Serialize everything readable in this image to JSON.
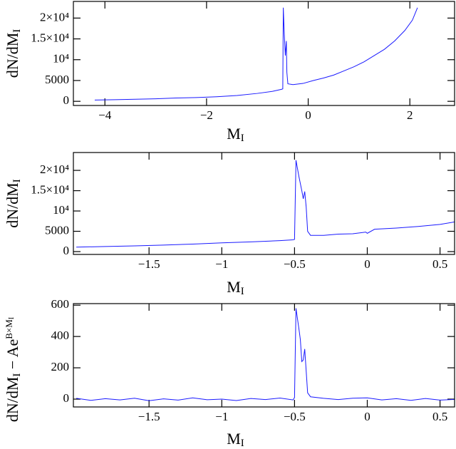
{
  "chart_data": [
    {
      "type": "line",
      "color": "#1a1aff",
      "xlabel": [
        {
          "text": "M"
        },
        {
          "text": "I",
          "style": "sub"
        }
      ],
      "ylabel": [
        {
          "text": "dN/dM"
        },
        {
          "text": "I",
          "style": "sub"
        }
      ],
      "xlim": [
        -4.62,
        2.88
      ],
      "ylim": [
        -1000,
        24000
      ],
      "xticks": [
        {
          "value": -4,
          "label": "−4"
        },
        {
          "value": -2,
          "label": "−2"
        },
        0,
        2
      ],
      "yticks": [
        0,
        5000,
        {
          "value": 10000,
          "label": "10⁴"
        },
        {
          "value": 15000,
          "label": "1.5×10⁴"
        },
        {
          "value": 20000,
          "label": "2×10⁴"
        }
      ],
      "x": [
        -4.2,
        -3.8,
        -3.4,
        -3.0,
        -2.6,
        -2.2,
        -1.8,
        -1.4,
        -1.0,
        -0.7,
        -0.52,
        -0.5,
        -0.49,
        -0.47,
        -0.45,
        -0.43,
        -0.42,
        -0.4,
        -0.3,
        -0.1,
        0.1,
        0.3,
        0.5,
        0.7,
        0.9,
        1.1,
        1.3,
        1.5,
        1.7,
        1.9,
        2.05,
        2.15
      ],
      "values": [
        300,
        400,
        500,
        600,
        800,
        900,
        1100,
        1400,
        1900,
        2400,
        2900,
        3000,
        22500,
        16000,
        11000,
        14500,
        7000,
        4200,
        4000,
        4300,
        5000,
        5600,
        6300,
        7300,
        8300,
        9500,
        11000,
        12500,
        14500,
        17000,
        19500,
        22500
      ]
    },
    {
      "type": "line",
      "color": "#1a1aff",
      "xlabel": [
        {
          "text": "M"
        },
        {
          "text": "I",
          "style": "sub"
        }
      ],
      "ylabel": [
        {
          "text": "dN/dM"
        },
        {
          "text": "I",
          "style": "sub"
        }
      ],
      "xlim": [
        -2.02,
        0.6
      ],
      "ylim": [
        -700,
        24400
      ],
      "xticks": [
        {
          "value": -1.5,
          "label": "−1.5"
        },
        {
          "value": -1,
          "label": "−1"
        },
        {
          "value": -0.5,
          "label": "−0.5"
        },
        0,
        0.5
      ],
      "yticks": [
        0,
        5000,
        {
          "value": 10000,
          "label": "10⁴"
        },
        {
          "value": 15000,
          "label": "1.5×10⁴"
        },
        {
          "value": 20000,
          "label": "2×10⁴"
        }
      ],
      "x": [
        -2.0,
        -1.8,
        -1.6,
        -1.4,
        -1.2,
        -1.0,
        -0.8,
        -0.6,
        -0.51,
        -0.5,
        -0.49,
        -0.47,
        -0.45,
        -0.44,
        -0.43,
        -0.42,
        -0.41,
        -0.39,
        -0.3,
        -0.2,
        -0.1,
        -0.01,
        0.0,
        0.05,
        0.2,
        0.35,
        0.5,
        0.6
      ],
      "values": [
        1100,
        1250,
        1400,
        1600,
        1850,
        2150,
        2400,
        2700,
        2900,
        3000,
        22500,
        18500,
        15000,
        13000,
        14800,
        11000,
        5000,
        4000,
        4000,
        4300,
        4400,
        4800,
        4500,
        5500,
        5800,
        6200,
        6700,
        7300
      ]
    },
    {
      "type": "line",
      "color": "#1a1aff",
      "xlabel": [
        {
          "text": "M"
        },
        {
          "text": "I",
          "style": "sub"
        }
      ],
      "ylabel": [
        {
          "text": "dN/dM"
        },
        {
          "text": "I",
          "style": "sub"
        },
        {
          "text": " − Ae"
        },
        {
          "text": "B×M",
          "style": "sup"
        },
        {
          "text": "I",
          "style": "supsub"
        }
      ],
      "xlim": [
        -2.02,
        0.6
      ],
      "ylim": [
        -50,
        610
      ],
      "xticks": [
        {
          "value": -1.5,
          "label": "−1.5"
        },
        {
          "value": -1,
          "label": "−1"
        },
        {
          "value": -0.5,
          "label": "−0.5"
        },
        0,
        0.5
      ],
      "yticks": [
        0,
        200,
        400,
        600
      ],
      "x": [
        -2.0,
        -1.9,
        -1.8,
        -1.7,
        -1.6,
        -1.5,
        -1.4,
        -1.3,
        -1.2,
        -1.1,
        -1.0,
        -0.9,
        -0.8,
        -0.7,
        -0.6,
        -0.51,
        -0.5,
        -0.49,
        -0.47,
        -0.46,
        -0.45,
        -0.44,
        -0.43,
        -0.42,
        -0.41,
        -0.39,
        -0.3,
        -0.2,
        -0.1,
        0.0,
        0.1,
        0.2,
        0.3,
        0.4,
        0.5,
        0.6
      ],
      "values": [
        5,
        -8,
        3,
        -5,
        6,
        -10,
        2,
        -6,
        8,
        -4,
        0,
        -9,
        4,
        -3,
        7,
        -5,
        10,
        580,
        450,
        380,
        240,
        250,
        320,
        180,
        40,
        15,
        5,
        -3,
        6,
        8,
        -5,
        3,
        -8,
        4,
        -6,
        -2
      ]
    }
  ]
}
